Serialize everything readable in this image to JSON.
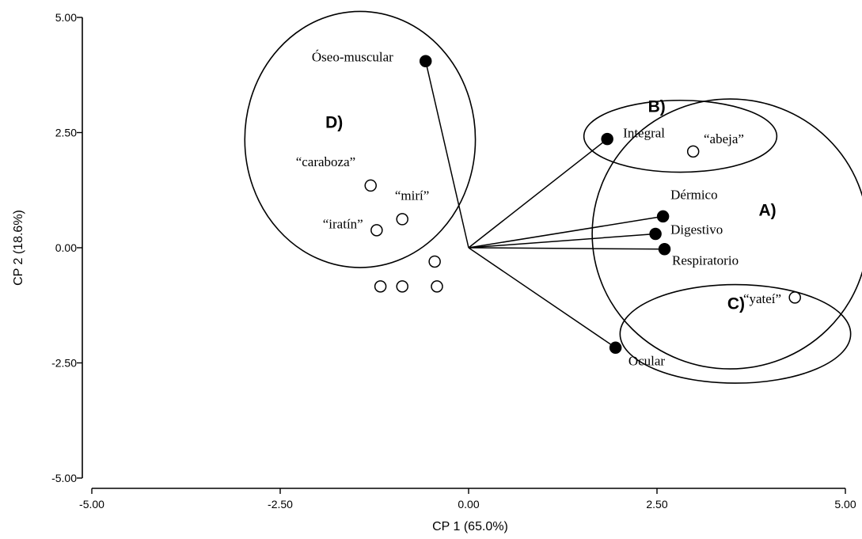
{
  "chart_data": {
    "type": "scatter",
    "title": "",
    "xlabel": "CP 1 (65.0%)",
    "ylabel": "CP 2 (18.6%)",
    "xlim": [
      -5.0,
      5.0
    ],
    "ylim": [
      -5.0,
      5.0
    ],
    "x_ticks": [
      "-5.00",
      "-2.50",
      "0.00",
      "2.50",
      "5.00"
    ],
    "y_ticks": [
      "-5.00",
      "-2.50",
      "0.00",
      "2.50",
      "5.00"
    ],
    "grid": false,
    "series": [
      {
        "marker": "filled",
        "points": [
          {
            "label": "Óseo-muscular",
            "x": -0.57,
            "y": 4.05
          },
          {
            "label": "Integral",
            "x": 1.84,
            "y": 2.36
          },
          {
            "label": "Dérmico",
            "x": 2.58,
            "y": 0.68
          },
          {
            "label": "Digestivo",
            "x": 2.48,
            "y": 0.3
          },
          {
            "label": "Respiratorio",
            "x": 2.6,
            "y": -0.03
          },
          {
            "label": "Ocular",
            "x": 1.95,
            "y": -2.17
          }
        ]
      },
      {
        "marker": "open",
        "points": [
          {
            "label": "“abeja”",
            "x": 2.98,
            "y": 2.09
          },
          {
            "label": "“caraboza”",
            "x": -1.3,
            "y": 1.35
          },
          {
            "label": "“mirí”",
            "x": -0.88,
            "y": 0.62
          },
          {
            "label": "“iratín”",
            "x": -1.22,
            "y": 0.38
          },
          {
            "label": "“yateí”",
            "x": 4.33,
            "y": -1.08
          },
          {
            "label": "",
            "x": -0.45,
            "y": -0.3
          },
          {
            "label": "",
            "x": -1.17,
            "y": -0.84
          },
          {
            "label": "",
            "x": -0.88,
            "y": -0.84
          },
          {
            "label": "",
            "x": -0.42,
            "y": -0.84
          }
        ]
      }
    ],
    "vectors": [
      "Óseo-muscular",
      "Integral",
      "Dérmico",
      "Digestivo",
      "Respiratorio",
      "Ocular"
    ],
    "groups": [
      {
        "label": "A)",
        "cx": 3.47,
        "cy": 0.3,
        "rx": 1.83,
        "ry": 2.93
      },
      {
        "label": "B)",
        "cx": 2.81,
        "cy": 2.42,
        "rx": 1.28,
        "ry": 0.78
      },
      {
        "label": "C)",
        "cx": 3.54,
        "cy": -1.87,
        "rx": 1.53,
        "ry": 1.07
      },
      {
        "label": "D)",
        "cx": -1.44,
        "cy": 2.35,
        "rx": 1.53,
        "ry": 2.78
      }
    ]
  }
}
